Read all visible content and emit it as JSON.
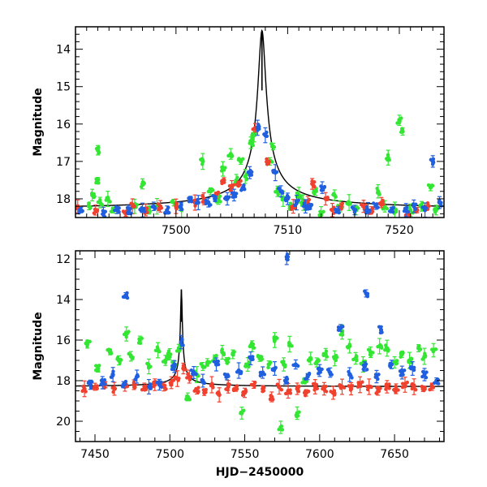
{
  "colors": {
    "green": "#33e633",
    "red": "#f0402e",
    "blue": "#1f5fe0",
    "model": "#000000"
  },
  "chart_data": [
    {
      "type": "scatter",
      "title": "",
      "xlabel": "",
      "ylabel": "Magnitude",
      "xlim": [
        7491,
        7524
      ],
      "ylim": [
        18.5,
        13.4
      ],
      "y_inverted": true,
      "x_ticks": [
        7500,
        7510,
        7520
      ],
      "y_ticks": [
        14,
        15,
        16,
        17,
        18
      ],
      "grid": false,
      "legend": "none",
      "peak": {
        "x": 7507.7,
        "y": 13.5
      },
      "baseline": 18.3,
      "series": [
        {
          "color": "green",
          "x": [
            7492.2,
            7492.5,
            7493.0,
            7493.0,
            7493.2,
            7493.9,
            7494.4,
            7496.3,
            7497.0,
            7497.6,
            7498.3,
            7499.8,
            7500.5,
            7502.4,
            7503.1,
            7503.8,
            7504.2,
            7504.9,
            7505.4,
            7505.8,
            7506.2,
            7506.7,
            7507.0,
            7508.4,
            7508.7,
            7509.1,
            7509.6,
            7510.2,
            7511.0,
            7511.4,
            7512.5,
            7513.0,
            7514.2,
            7514.7,
            7515.5,
            7516.1,
            7518.1,
            7518.7,
            7519.0,
            7519.6,
            7520.0,
            7520.3,
            7521.0,
            7522.0,
            7522.8,
            7523.3
          ],
          "y": [
            18.2,
            17.9,
            17.5,
            16.7,
            18.1,
            18.0,
            18.3,
            18.2,
            17.6,
            18.3,
            18.2,
            18.1,
            18.3,
            17.0,
            17.8,
            18.0,
            17.2,
            16.8,
            17.5,
            17.0,
            17.4,
            16.5,
            16.3,
            17.0,
            16.6,
            17.8,
            18.0,
            18.2,
            17.9,
            18.1,
            17.8,
            18.4,
            17.9,
            18.2,
            18.1,
            18.3,
            17.8,
            18.2,
            16.9,
            18.3,
            15.9,
            16.2,
            18.3,
            18.2,
            17.7,
            18.3
          ]
        },
        {
          "color": "red",
          "x": [
            7491.2,
            7492.8,
            7495.5,
            7496.1,
            7497.3,
            7498.6,
            7500.0,
            7501.7,
            7502.5,
            7503.6,
            7504.3,
            7505.0,
            7505.6,
            7507.1,
            7508.2,
            7510.5,
            7511.8,
            7512.2,
            7513.4,
            7514.0,
            7514.8,
            7516.8,
            7517.5,
            7518.4,
            7520.8,
            7521.6,
            7522.5
          ],
          "y": [
            18.2,
            18.3,
            18.4,
            18.2,
            18.3,
            18.2,
            18.2,
            18.1,
            18.0,
            17.9,
            17.5,
            17.7,
            17.6,
            16.1,
            17.0,
            18.2,
            18.1,
            17.6,
            18.0,
            18.3,
            18.2,
            18.2,
            18.3,
            18.1,
            18.4,
            18.3,
            18.2
          ]
        },
        {
          "color": "blue",
          "x": [
            7491.5,
            7493.5,
            7494.7,
            7495.8,
            7497.0,
            7498.0,
            7499.2,
            7500.4,
            7501.3,
            7502.0,
            7502.9,
            7503.5,
            7504.6,
            7505.2,
            7506.0,
            7506.6,
            7507.3,
            7508.0,
            7508.9,
            7509.4,
            7510.0,
            7510.8,
            7511.6,
            7512.0,
            7513.1,
            7514.5,
            7516.0,
            7517.2,
            7517.9,
            7519.3,
            7520.6,
            7521.3,
            7522.3,
            7523.0,
            7523.6
          ],
          "y": [
            18.3,
            18.4,
            18.3,
            18.3,
            18.3,
            18.2,
            18.3,
            18.2,
            18.0,
            18.1,
            18.1,
            18.0,
            18.0,
            17.9,
            17.7,
            17.3,
            16.1,
            16.3,
            17.3,
            17.8,
            18.0,
            18.1,
            18.2,
            18.2,
            17.7,
            18.3,
            18.3,
            18.3,
            18.2,
            18.3,
            18.3,
            18.2,
            18.3,
            17.0,
            18.1
          ]
        }
      ]
    },
    {
      "type": "scatter",
      "title": "",
      "xlabel": "HJD−2450000",
      "ylabel": "Magnitude",
      "xlim": [
        7437,
        7683
      ],
      "ylim": [
        21.0,
        11.6
      ],
      "y_inverted": true,
      "x_ticks": [
        7450,
        7500,
        7550,
        7600,
        7650
      ],
      "y_ticks": [
        12,
        14,
        16,
        18,
        20
      ],
      "grid": false,
      "legend": "none",
      "peak": {
        "x": 7507.7,
        "y": 13.5
      },
      "baseline": 18.3,
      "series": [
        {
          "color": "green",
          "x": [
            7445,
            7452,
            7460,
            7466,
            7471,
            7474,
            7480,
            7486,
            7492,
            7497,
            7500,
            7503,
            7506,
            7512,
            7518,
            7522,
            7525,
            7530,
            7535,
            7538,
            7542,
            7548,
            7552,
            7555,
            7560,
            7566,
            7570,
            7574,
            7576,
            7580,
            7585,
            7590,
            7594,
            7598,
            7604,
            7610,
            7615,
            7620,
            7624,
            7629,
            7634,
            7640,
            7645,
            7650,
            7655,
            7660,
            7666,
            7670,
            7676
          ],
          "y": [
            16.2,
            17.4,
            16.6,
            17.0,
            15.7,
            16.8,
            16.0,
            17.3,
            16.5,
            17.0,
            16.7,
            17.2,
            16.4,
            18.8,
            17.7,
            17.3,
            17.1,
            16.9,
            16.6,
            17.0,
            16.7,
            19.6,
            17.2,
            16.3,
            16.9,
            17.2,
            16.0,
            20.3,
            17.2,
            16.2,
            19.6,
            18.0,
            16.9,
            17.1,
            16.7,
            16.9,
            15.6,
            16.3,
            16.9,
            17.2,
            16.6,
            16.3,
            16.4,
            17.1,
            16.7,
            17.0,
            16.4,
            16.8,
            16.5
          ]
        },
        {
          "color": "red",
          "x": [
            7443,
            7450,
            7457,
            7463,
            7470,
            7476,
            7483,
            7490,
            7496,
            7501,
            7505,
            7509,
            7513,
            7518,
            7523,
            7528,
            7533,
            7539,
            7544,
            7550,
            7556,
            7562,
            7568,
            7573,
            7579,
            7585,
            7591,
            7597,
            7603,
            7609,
            7615,
            7621,
            7627,
            7633,
            7639,
            7645,
            7651,
            7657,
            7663,
            7669,
            7675
          ],
          "y": [
            18.4,
            18.3,
            18.2,
            18.4,
            18.3,
            18.2,
            18.3,
            18.2,
            18.3,
            18.1,
            17.9,
            17.4,
            17.8,
            18.5,
            18.6,
            18.2,
            18.7,
            18.3,
            18.4,
            18.6,
            18.2,
            18.4,
            18.8,
            18.3,
            18.5,
            18.4,
            18.6,
            18.3,
            18.4,
            18.6,
            18.3,
            18.4,
            18.2,
            18.3,
            18.5,
            18.3,
            18.4,
            18.2,
            18.3,
            18.4,
            18.3
          ]
        },
        {
          "color": "blue",
          "x": [
            7447,
            7455,
            7462,
            7469,
            7470.5,
            7478,
            7486,
            7493,
            7503,
            7507.5,
            7516,
            7522,
            7531,
            7538,
            7546,
            7554,
            7562,
            7570,
            7577,
            7578,
            7584,
            7592,
            7600,
            7607,
            7614,
            7620,
            7630,
            7631,
            7638,
            7641,
            7648,
            7655,
            7662,
            7670,
            7678
          ],
          "y": [
            18.2,
            18.1,
            17.7,
            18.2,
            13.8,
            17.8,
            18.3,
            18.2,
            17.3,
            16.1,
            17.6,
            18.0,
            17.2,
            17.8,
            17.5,
            16.9,
            17.6,
            17.4,
            18.0,
            11.9,
            17.2,
            17.8,
            17.5,
            17.6,
            15.4,
            17.7,
            17.3,
            13.7,
            17.8,
            15.5,
            17.2,
            17.6,
            17.4,
            17.7,
            18.0
          ]
        }
      ]
    }
  ]
}
